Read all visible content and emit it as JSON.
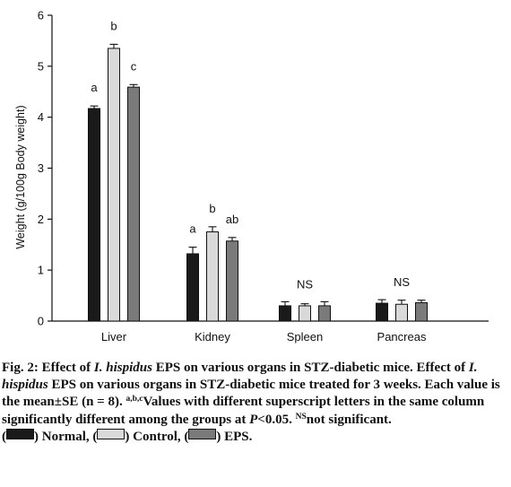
{
  "chart_data": {
    "type": "bar",
    "ylabel": "Weight (g/100g Body weight)",
    "xlabel": "",
    "ylim": [
      0,
      6
    ],
    "yticks": [
      0,
      1,
      2,
      3,
      4,
      5,
      6
    ],
    "grid": false,
    "categories": [
      "Liver",
      "Kidney",
      "Spleen",
      "Pancreas"
    ],
    "series": [
      {
        "name": "Normal",
        "color": "#1a1a1a",
        "values": [
          4.17,
          1.32,
          0.3,
          0.35
        ],
        "errors": [
          0.05,
          0.13,
          0.08,
          0.07
        ]
      },
      {
        "name": "Control",
        "color": "#d9d9d9",
        "values": [
          5.35,
          1.75,
          0.3,
          0.33
        ],
        "errors": [
          0.08,
          0.1,
          0.04,
          0.08
        ]
      },
      {
        "name": "EPS",
        "color": "#7a7a7a",
        "values": [
          4.59,
          1.57,
          0.3,
          0.36
        ],
        "errors": [
          0.05,
          0.07,
          0.08,
          0.05
        ]
      }
    ],
    "annotations": [
      {
        "category": "Liver",
        "letters": [
          "a",
          "b",
          "c"
        ]
      },
      {
        "category": "Kidney",
        "letters": [
          "a",
          "b",
          "ab"
        ]
      },
      {
        "category": "Spleen",
        "group_label": "NS"
      },
      {
        "category": "Pancreas",
        "group_label": "NS"
      }
    ]
  },
  "caption": {
    "fig_label": "Fig. 2: Effect of ",
    "species": "I. hispidus",
    "fig_title_rest": " EPS on various organs in STZ-diabetic mice.",
    "desc1": "Effect of ",
    "species2": "I. hispidus",
    "desc1_rest": " EPS on various organs in STZ-diabetic mice treated for 3 weeks. Each value is the mean±SE (n = 8). ",
    "sup_letters": "a,b,c",
    "desc2": "Values with different superscript letters in the same column significantly different among the groups at ",
    "p_symbol": "P",
    "p_rest": "<0.05. ",
    "sup_ns": "NS",
    "ns_text": "not significant.",
    "legend": [
      {
        "label": ") Normal, (",
        "color": "#1a1a1a"
      },
      {
        "label": ") Control, (",
        "color": "#d9d9d9"
      },
      {
        "label": ") EPS.",
        "color": "#7a7a7a"
      }
    ]
  }
}
